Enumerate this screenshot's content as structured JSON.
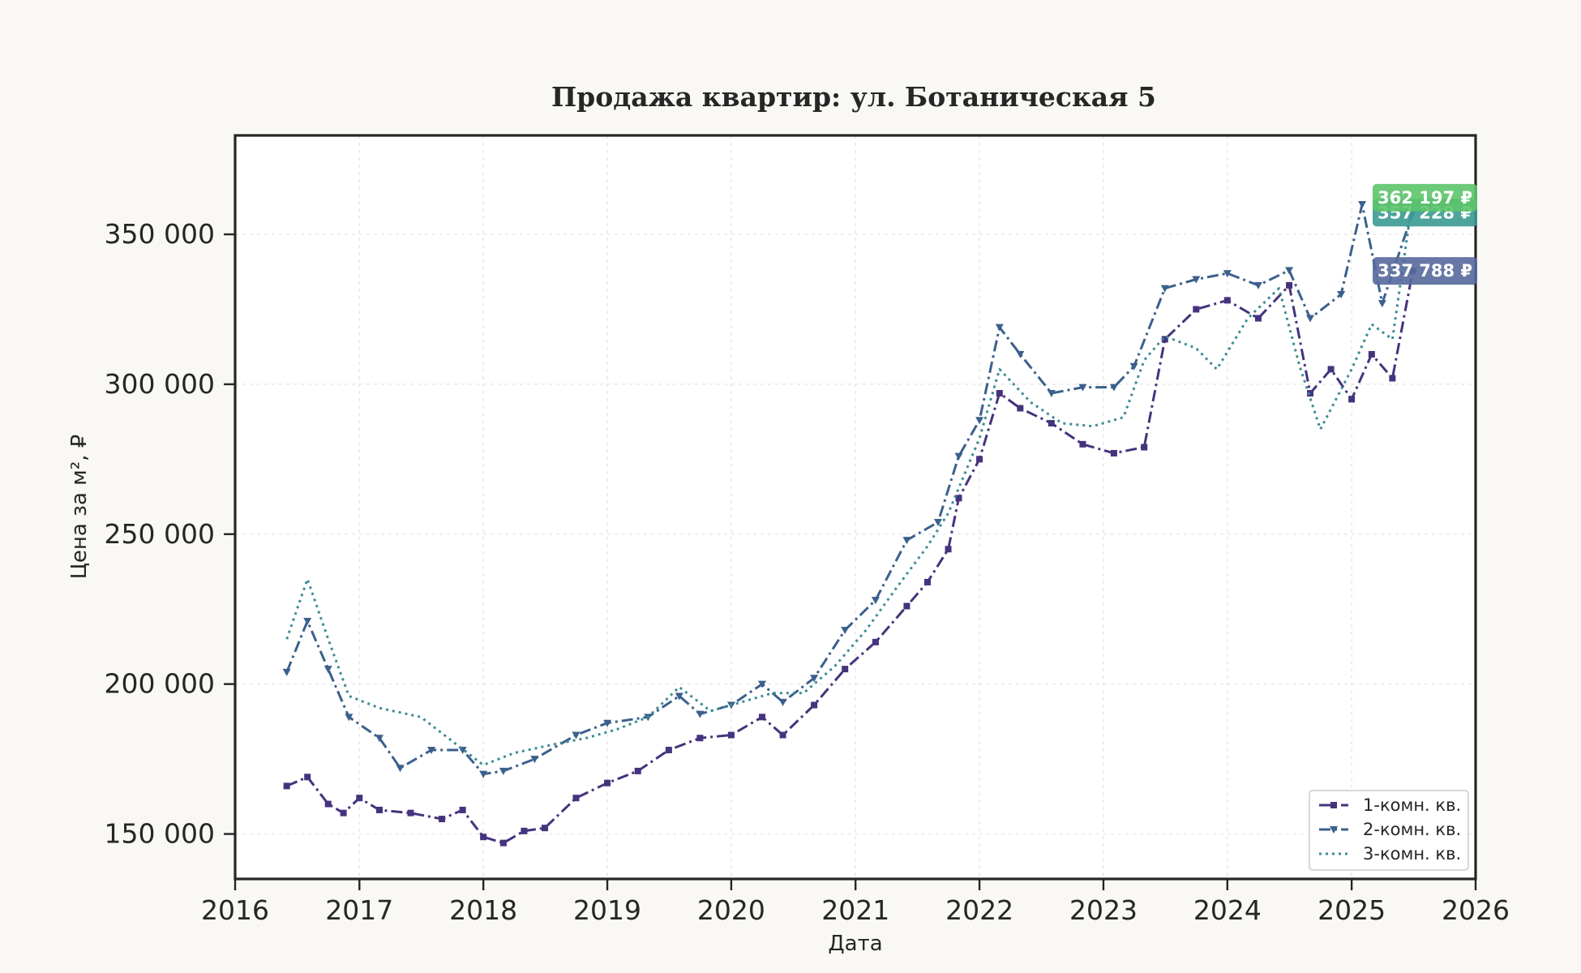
{
  "chart_data": {
    "type": "line",
    "title": "Продажа квартир: ул. Ботаническая 5",
    "xlabel": "Дата",
    "ylabel": "Цена за м², ₽",
    "xlim": [
      "2016-01-01",
      "2026-01-01"
    ],
    "ylim": [
      135000,
      383000
    ],
    "x_ticks": [
      "2016",
      "2017",
      "2018",
      "2019",
      "2020",
      "2021",
      "2022",
      "2023",
      "2024",
      "2025",
      "2026"
    ],
    "y_ticks": [
      150000,
      200000,
      250000,
      300000,
      350000
    ],
    "y_tick_labels": [
      "150 000",
      "200 000",
      "250 000",
      "300 000",
      "350 000"
    ],
    "grid": true,
    "legend_position": "lower-right",
    "series": [
      {
        "name": "1-комн. кв.",
        "color": "#45337d",
        "line_style": "dash-dot",
        "marker": "square",
        "end_label": "337 788 ₽",
        "x": [
          "2016-06-01",
          "2016-08-01",
          "2016-10-01",
          "2016-11-15",
          "2017-01-01",
          "2017-03-01",
          "2017-06-01",
          "2017-09-01",
          "2017-11-01",
          "2018-01-01",
          "2018-03-01",
          "2018-05-01",
          "2018-07-01",
          "2018-10-01",
          "2019-01-01",
          "2019-04-01",
          "2019-07-01",
          "2019-10-01",
          "2020-01-01",
          "2020-04-01",
          "2020-06-01",
          "2020-09-01",
          "2020-12-01",
          "2021-03-01",
          "2021-06-01",
          "2021-08-01",
          "2021-10-01",
          "2021-11-01",
          "2022-01-01",
          "2022-03-01",
          "2022-05-01",
          "2022-08-01",
          "2022-11-01",
          "2023-02-01",
          "2023-05-01",
          "2023-07-01",
          "2023-10-01",
          "2024-01-01",
          "2024-04-01",
          "2024-07-01",
          "2024-09-01",
          "2024-11-01",
          "2025-01-01",
          "2025-03-01",
          "2025-05-01",
          "2025-06-30"
        ],
        "values": [
          166000,
          169000,
          160000,
          157000,
          162000,
          158000,
          157000,
          155000,
          158000,
          149000,
          147000,
          151000,
          152000,
          162000,
          167000,
          171000,
          178000,
          182000,
          183000,
          189000,
          183000,
          193000,
          205000,
          214000,
          226000,
          234000,
          245000,
          262000,
          275000,
          297000,
          292000,
          287000,
          280000,
          277000,
          279000,
          315000,
          325000,
          328000,
          322000,
          333000,
          297000,
          305000,
          295000,
          310000,
          302000,
          337788
        ]
      },
      {
        "name": "2-комн. кв.",
        "color": "#3b608c",
        "line_style": "dash-dot",
        "marker": "triangle-down",
        "end_label": "357 228 ₽",
        "x": [
          "2016-06-01",
          "2016-08-01",
          "2016-10-01",
          "2016-12-01",
          "2017-03-01",
          "2017-05-01",
          "2017-08-01",
          "2017-11-01",
          "2018-01-01",
          "2018-03-01",
          "2018-06-01",
          "2018-10-01",
          "2019-01-01",
          "2019-05-01",
          "2019-08-01",
          "2019-10-01",
          "2020-01-01",
          "2020-04-01",
          "2020-06-01",
          "2020-09-01",
          "2020-12-01",
          "2021-03-01",
          "2021-06-01",
          "2021-09-01",
          "2021-11-01",
          "2022-01-01",
          "2022-03-01",
          "2022-05-01",
          "2022-08-01",
          "2022-11-01",
          "2023-02-01",
          "2023-04-01",
          "2023-07-01",
          "2023-10-01",
          "2024-01-01",
          "2024-04-01",
          "2024-07-01",
          "2024-09-01",
          "2024-12-01",
          "2025-02-01",
          "2025-04-01",
          "2025-06-30"
        ],
        "values": [
          204000,
          221000,
          205000,
          189000,
          182000,
          172000,
          178000,
          178000,
          170000,
          171000,
          175000,
          183000,
          187000,
          189000,
          196000,
          190000,
          193000,
          200000,
          194000,
          202000,
          218000,
          228000,
          248000,
          254000,
          276000,
          288000,
          319000,
          310000,
          297000,
          299000,
          299000,
          306000,
          332000,
          335000,
          337000,
          333000,
          338000,
          322000,
          330000,
          360000,
          327000,
          357228
        ]
      },
      {
        "name": "3-комн. кв.",
        "color": "#3d8c96",
        "line_style": "dotted",
        "marker": "none",
        "end_label": "362 197 ₽",
        "x": [
          "2016-06-01",
          "2016-08-01",
          "2016-10-01",
          "2016-12-01",
          "2017-03-01",
          "2017-07-01",
          "2017-10-01",
          "2018-01-01",
          "2018-04-01",
          "2018-08-01",
          "2018-11-01",
          "2019-02-01",
          "2019-05-01",
          "2019-08-01",
          "2019-11-01",
          "2020-02-01",
          "2020-05-01",
          "2020-08-01",
          "2020-11-01",
          "2021-02-01",
          "2021-05-01",
          "2021-08-01",
          "2021-10-01",
          "2022-01-01",
          "2022-03-01",
          "2022-06-01",
          "2022-09-01",
          "2022-12-01",
          "2023-03-01",
          "2023-05-01",
          "2023-07-01",
          "2023-10-01",
          "2023-12-01",
          "2024-03-01",
          "2024-06-01",
          "2024-08-01",
          "2024-10-01",
          "2025-01-01",
          "2025-03-01",
          "2025-05-01",
          "2025-06-30"
        ],
        "values": [
          215000,
          235000,
          215000,
          196000,
          192000,
          189000,
          181000,
          173000,
          177000,
          180000,
          182000,
          185000,
          189000,
          199000,
          191000,
          194000,
          197000,
          197000,
          206000,
          218000,
          232000,
          246000,
          257000,
          282000,
          305000,
          294000,
          287000,
          286000,
          289000,
          308000,
          316000,
          312000,
          305000,
          322000,
          332000,
          306000,
          285000,
          305000,
          320000,
          315000,
          362197
        ]
      }
    ]
  }
}
